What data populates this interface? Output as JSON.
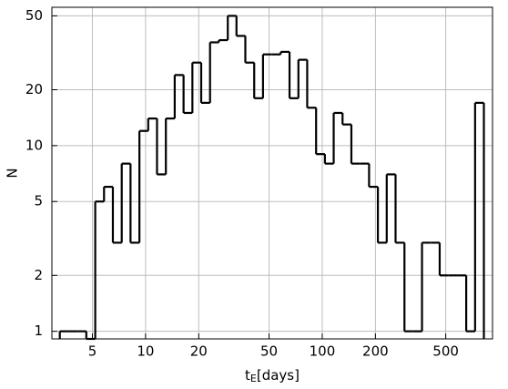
{
  "chart_data": {
    "type": "histogram",
    "x_label": {
      "main": "t",
      "sub": "E",
      "unit": "[days]"
    },
    "y_label": "N",
    "bins": [
      3.27,
      3.67,
      4.12,
      4.62,
      5.19,
      5.82,
      6.53,
      7.33,
      8.22,
      9.23,
      10.35,
      11.61,
      13.03,
      14.62,
      16.41,
      18.41,
      20.65,
      23.17,
      26.0,
      29.2,
      32.7,
      36.7,
      41.2,
      46.2,
      51.9,
      58.2,
      65.3,
      73.3,
      82.2,
      92.3,
      103.5,
      116.1,
      130.3,
      146.2,
      164.1,
      184.1,
      206.5,
      231.7,
      260,
      292,
      327,
      367,
      412,
      462,
      519,
      582,
      653,
      733,
      822
    ],
    "values": [
      1,
      1,
      1,
      0,
      5,
      6,
      3,
      8,
      3,
      12,
      14,
      7,
      14,
      24,
      15,
      28,
      17,
      36,
      37,
      50,
      39,
      28,
      18,
      31,
      31,
      32,
      18,
      29,
      16,
      9,
      8,
      15,
      13,
      8,
      8,
      6,
      3,
      7,
      3,
      1,
      1,
      3,
      3,
      2,
      2,
      2,
      1,
      17
    ],
    "color": "#000000",
    "xlim": [
      2.95,
      920
    ],
    "ylim": [
      0.91,
      55.6
    ],
    "xticks": [
      5,
      10,
      20,
      50,
      100,
      200,
      500
    ],
    "yticks": [
      1,
      2,
      5,
      10,
      20,
      50
    ],
    "xscale": "log",
    "yscale": "log",
    "grid": true
  }
}
